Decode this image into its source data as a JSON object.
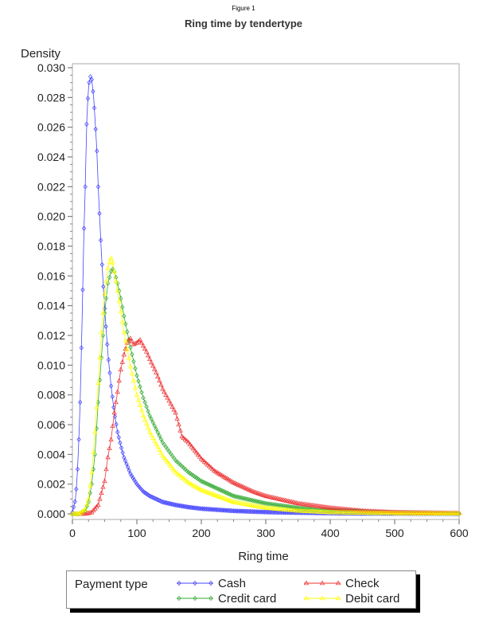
{
  "figure_label": "Figure 1",
  "chart_data": {
    "type": "line",
    "title": "Ring time by tendertype",
    "xlabel": "Ring time",
    "ylabel": "Density",
    "xlim": [
      0,
      600
    ],
    "ylim": [
      0,
      0.03
    ],
    "xticks": [
      "0",
      "100",
      "200",
      "300",
      "400",
      "500",
      "600"
    ],
    "yticks": [
      "0.000",
      "0.002",
      "0.004",
      "0.006",
      "0.008",
      "0.010",
      "0.012",
      "0.014",
      "0.016",
      "0.018",
      "0.020",
      "0.022",
      "0.024",
      "0.026",
      "0.028",
      "0.030"
    ],
    "legend_title": "Payment type",
    "legend_position": "bottom",
    "series": [
      {
        "name": "Cash",
        "color": "#4444ff",
        "marker": "diamond",
        "x": [
          0,
          5,
          8,
          10,
          12,
          15,
          18,
          20,
          22,
          25,
          28,
          30,
          33,
          35,
          38,
          40,
          45,
          50,
          55,
          60,
          65,
          70,
          75,
          80,
          90,
          100,
          110,
          120,
          140,
          160,
          180,
          200,
          250,
          300,
          350,
          400,
          450,
          500,
          600
        ],
        "y": [
          0.0001,
          0.001,
          0.003,
          0.005,
          0.0075,
          0.013,
          0.0192,
          0.022,
          0.0262,
          0.0288,
          0.0294,
          0.0292,
          0.028,
          0.0266,
          0.0244,
          0.022,
          0.0175,
          0.0138,
          0.0108,
          0.0086,
          0.0068,
          0.0055,
          0.0046,
          0.0038,
          0.0027,
          0.002,
          0.0015,
          0.0012,
          0.0008,
          0.0006,
          0.00045,
          0.00035,
          0.0002,
          0.00012,
          8e-05,
          5e-05,
          3e-05,
          2e-05,
          1e-05
        ]
      },
      {
        "name": "Credit card",
        "color": "#33aa33",
        "marker": "diamond",
        "x": [
          0,
          10,
          20,
          25,
          30,
          35,
          40,
          45,
          50,
          55,
          60,
          63,
          65,
          70,
          75,
          80,
          90,
          100,
          110,
          120,
          140,
          160,
          180,
          200,
          250,
          300,
          350,
          400,
          450,
          500,
          600
        ],
        "y": [
          0,
          0,
          0.0002,
          0.0008,
          0.002,
          0.004,
          0.0075,
          0.0105,
          0.0135,
          0.0155,
          0.0163,
          0.0165,
          0.0163,
          0.0155,
          0.0145,
          0.0133,
          0.0112,
          0.0093,
          0.0078,
          0.0066,
          0.0048,
          0.0036,
          0.0028,
          0.0022,
          0.0012,
          0.0007,
          0.0004,
          0.00025,
          0.00015,
          0.0001,
          4e-05
        ]
      },
      {
        "name": "Check",
        "color": "#ee3333",
        "marker": "triangle",
        "x": [
          0,
          20,
          30,
          40,
          50,
          55,
          60,
          65,
          70,
          75,
          80,
          85,
          90,
          95,
          100,
          105,
          110,
          115,
          120,
          130,
          140,
          150,
          160,
          170,
          180,
          200,
          220,
          250,
          280,
          300,
          350,
          400,
          450,
          500,
          600
        ],
        "y": [
          0,
          0,
          0.0001,
          0.0006,
          0.0022,
          0.0038,
          0.005,
          0.0068,
          0.0082,
          0.0097,
          0.0107,
          0.0115,
          0.0118,
          0.0114,
          0.0115,
          0.0117,
          0.0113,
          0.0109,
          0.0104,
          0.0095,
          0.0084,
          0.0076,
          0.0068,
          0.0052,
          0.0048,
          0.0037,
          0.0029,
          0.0021,
          0.0015,
          0.0012,
          0.0007,
          0.0004,
          0.0002,
          0.0001,
          4e-05
        ]
      },
      {
        "name": "Debit card",
        "color": "#ffff00",
        "marker": "triangle",
        "x": [
          0,
          10,
          20,
          25,
          30,
          35,
          40,
          45,
          50,
          55,
          58,
          60,
          62,
          65,
          70,
          75,
          80,
          90,
          100,
          110,
          120,
          140,
          160,
          180,
          200,
          250,
          300,
          350,
          400,
          450,
          500,
          600
        ],
        "y": [
          0,
          0,
          0.0003,
          0.001,
          0.0028,
          0.0055,
          0.0088,
          0.0122,
          0.0148,
          0.0165,
          0.017,
          0.0172,
          0.017,
          0.0163,
          0.015,
          0.0136,
          0.0122,
          0.0099,
          0.008,
          0.0066,
          0.0055,
          0.0039,
          0.0028,
          0.0021,
          0.0016,
          0.0008,
          0.0004,
          0.0002,
          0.0001,
          6e-05,
          3e-05,
          1e-05
        ]
      }
    ]
  }
}
